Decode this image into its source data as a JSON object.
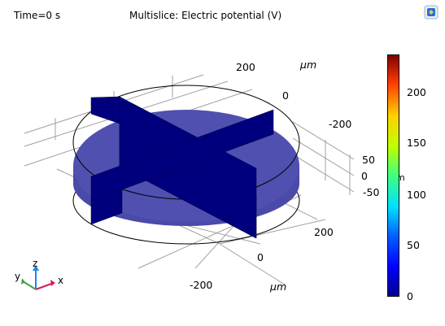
{
  "header": {
    "time_label": "Time=0 s",
    "plot_title": "Multislice: Electric potential (V)"
  },
  "axes": {
    "x_ticks": [
      "-200",
      "0",
      "200"
    ],
    "x_unit": "μm",
    "y_ticks": [
      "-200",
      "0",
      "200"
    ],
    "y_unit": "μm",
    "z_ticks": [
      "50",
      "0",
      "-50"
    ],
    "z_unit_fragment": "m"
  },
  "colorbar": {
    "ticks": [
      "0",
      "50",
      "100",
      "150",
      "200"
    ],
    "colormap": "rainbow",
    "min_color": "#00008f",
    "max_color": "#800000"
  },
  "triad": {
    "x_label": "x",
    "y_label": "y",
    "z_label": "z",
    "x_color": "#d81b60",
    "y_color": "#43a047",
    "z_color": "#1e88e5"
  },
  "scene": {
    "disk_color": "#5050b0",
    "slice_color": "#00007f",
    "toolbar_icon": "zoom-extents-icon"
  }
}
